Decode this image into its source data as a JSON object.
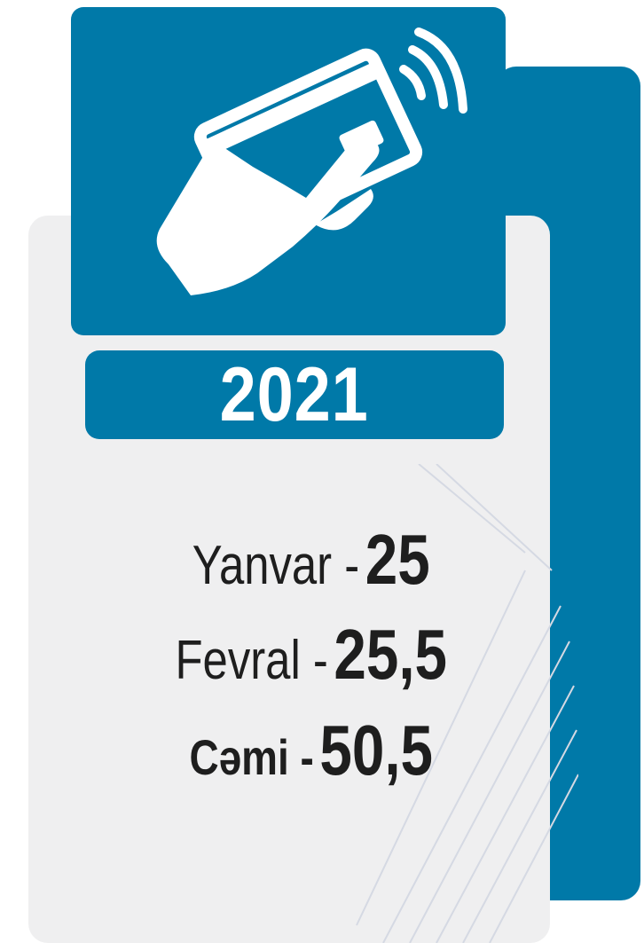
{
  "year": "2021",
  "items": [
    {
      "label": "Yanvar -",
      "value": "25"
    },
    {
      "label": "Fevral -",
      "value": "25,5"
    },
    {
      "label": "Cəmi -",
      "value": "50,5"
    }
  ]
}
